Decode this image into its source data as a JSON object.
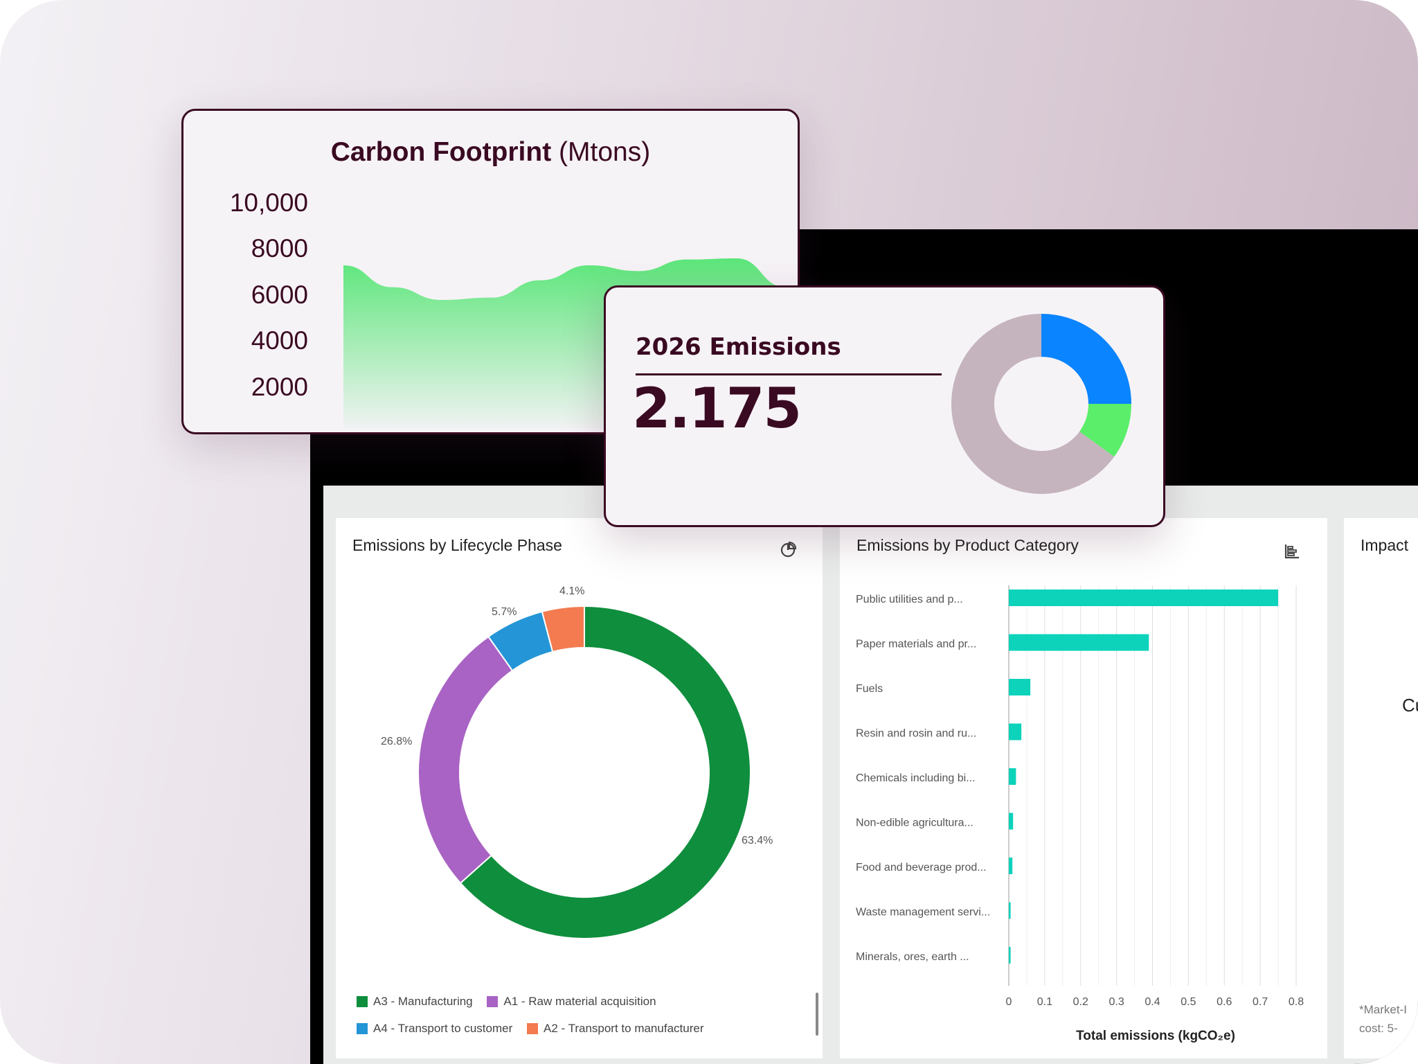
{
  "carbon_footprint": {
    "title_bold": "Carbon Footprint",
    "title_unit": "(Mtons)",
    "y_ticks": [
      "10,000",
      "8000",
      "6000",
      "4000",
      "2000"
    ],
    "accent": "#5ce67a"
  },
  "emissions_2026": {
    "title": "2026 Emissions",
    "value": "2.175",
    "donut": [
      {
        "share": 0.25,
        "color": "#0a84ff"
      },
      {
        "share": 0.1,
        "color": "#5aee6a"
      },
      {
        "share": 0.65,
        "color": "#c5b4bd"
      }
    ]
  },
  "lifecycle_card": {
    "title": "Emissions by Lifecycle Phase",
    "icon": "pie-chart-icon",
    "legend": [
      {
        "label": "A3 - Manufacturing",
        "color": "#0f8e3d"
      },
      {
        "label": "A1 - Raw material acquisition",
        "color": "#a963c4"
      },
      {
        "label": "A4 - Transport to customer",
        "color": "#2495d6"
      },
      {
        "label": "A2 - Transport to manufacturer",
        "color": "#f47a50"
      }
    ]
  },
  "product_card": {
    "title": "Emissions by Product Category",
    "icon": "bar-chart-icon",
    "xlabel": "Total emissions (kgCO₂e)"
  },
  "impact_card": {
    "title_partial": "Impact",
    "partial_text": "Cu",
    "footnote_1": "*Market-I",
    "footnote_2": "cost: 5-"
  },
  "chart_data": [
    {
      "type": "area",
      "title": "Carbon Footprint (Mtons)",
      "ylabel": "",
      "xlabel": "",
      "y_tick_values": [
        10000,
        8000,
        6000,
        4000,
        2000
      ],
      "x": [
        0,
        1,
        2,
        3,
        4,
        5,
        6,
        7,
        8,
        9
      ],
      "values": [
        7450,
        6500,
        5950,
        6050,
        6800,
        7450,
        7200,
        7700,
        7750,
        6500
      ],
      "ylim": [
        1600,
        10000
      ]
    },
    {
      "type": "pie",
      "title": "Emissions by Lifecycle Phase",
      "categories": [
        "A3 - Manufacturing",
        "A1 - Raw material acquisition",
        "A4 - Transport to customer",
        "A2 - Transport to manufacturer"
      ],
      "values": [
        63.4,
        26.8,
        5.7,
        4.1
      ],
      "labels": [
        "63.4%",
        "26.8%",
        "5.7%",
        "4.1%"
      ],
      "colors": [
        "#0f8e3d",
        "#a963c4",
        "#2495d6",
        "#f47a50"
      ],
      "legend": "bottom"
    },
    {
      "type": "bar",
      "orientation": "horizontal",
      "title": "Emissions by Product Category",
      "xlabel": "Total emissions (kgCO₂e)",
      "categories": [
        "Public utilities and p...",
        "Paper materials and pr...",
        "Fuels",
        "Resin and rosin and ru...",
        "Chemicals including bi...",
        "Non-edible agricultura...",
        "Food and beverage prod...",
        "Waste management servi...",
        "Minerals, ores, earth ..."
      ],
      "values": [
        0.75,
        0.39,
        0.06,
        0.035,
        0.02,
        0.012,
        0.01,
        0.005,
        0.005
      ],
      "xlim": [
        0,
        0.82
      ],
      "x_ticks": [
        "0",
        "0.1",
        "0.2",
        "0.3",
        "0.4",
        "0.5",
        "0.6",
        "0.7",
        "0.8"
      ],
      "color": "#0dd3bb",
      "grid": true
    }
  ]
}
